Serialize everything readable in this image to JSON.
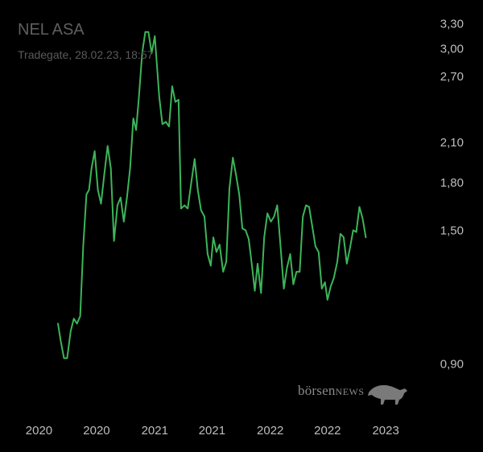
{
  "title": "NEL ASA",
  "subtitle": "Tradegate, 28.02.23, 18:57",
  "watermark": {
    "brand_lower": "börsen",
    "brand_upper": "NEWS",
    "icon": "bull-icon"
  },
  "colors": {
    "background": "#000000",
    "line": "#3cb55a",
    "axis_text": "#bdbdbd",
    "title_text": "#5f5f5f"
  },
  "chart_data": {
    "type": "line",
    "title": "NEL ASA",
    "y_scale": "log",
    "ylim": [
      0.84,
      3.4
    ],
    "y_ticks": [
      "3,30",
      "3,00",
      "2,70",
      "2,10",
      "1,80",
      "1,50",
      "0,90"
    ],
    "y_tick_values": [
      3.3,
      3.0,
      2.7,
      2.1,
      1.8,
      1.5,
      0.9
    ],
    "x_tick_labels": [
      "2020",
      "2020",
      "2021",
      "2021",
      "2022",
      "2022",
      "2023"
    ],
    "x_tick_dates": [
      "2020-01-01",
      "2020-07-01",
      "2021-01-01",
      "2021-07-01",
      "2022-01-01",
      "2022-07-01",
      "2023-01-01"
    ],
    "xlim": [
      "2019-11-15",
      "2023-04-15"
    ],
    "series": [
      {
        "points": [
          [
            "2020-03-01",
            1.05
          ],
          [
            "2020-03-10",
            0.98
          ],
          [
            "2020-03-20",
            0.92
          ],
          [
            "2020-03-30",
            0.92
          ],
          [
            "2020-04-10",
            1.02
          ],
          [
            "2020-04-20",
            1.07
          ],
          [
            "2020-04-30",
            1.05
          ],
          [
            "2020-05-10",
            1.08
          ],
          [
            "2020-05-20",
            1.42
          ],
          [
            "2020-05-30",
            1.72
          ],
          [
            "2020-06-07",
            1.75
          ],
          [
            "2020-06-15",
            1.9
          ],
          [
            "2020-06-25",
            2.03
          ],
          [
            "2020-07-05",
            1.75
          ],
          [
            "2020-07-15",
            1.66
          ],
          [
            "2020-07-25",
            1.85
          ],
          [
            "2020-08-05",
            2.07
          ],
          [
            "2020-08-15",
            1.9
          ],
          [
            "2020-08-25",
            1.44
          ],
          [
            "2020-09-05",
            1.65
          ],
          [
            "2020-09-15",
            1.7
          ],
          [
            "2020-09-25",
            1.55
          ],
          [
            "2020-10-05",
            1.7
          ],
          [
            "2020-10-15",
            1.9
          ],
          [
            "2020-10-25",
            2.3
          ],
          [
            "2020-11-03",
            2.2
          ],
          [
            "2020-11-12",
            2.5
          ],
          [
            "2020-11-22",
            2.95
          ],
          [
            "2020-12-02",
            3.2
          ],
          [
            "2020-12-12",
            3.2
          ],
          [
            "2020-12-22",
            2.95
          ],
          [
            "2021-01-01",
            3.15
          ],
          [
            "2021-01-15",
            2.5
          ],
          [
            "2021-01-25",
            2.25
          ],
          [
            "2021-02-05",
            2.27
          ],
          [
            "2021-02-15",
            2.23
          ],
          [
            "2021-02-25",
            2.6
          ],
          [
            "2021-03-07",
            2.45
          ],
          [
            "2021-03-17",
            2.47
          ],
          [
            "2021-03-25",
            1.63
          ],
          [
            "2021-04-05",
            1.65
          ],
          [
            "2021-04-15",
            1.63
          ],
          [
            "2021-04-25",
            1.78
          ],
          [
            "2021-05-07",
            1.97
          ],
          [
            "2021-05-17",
            1.75
          ],
          [
            "2021-05-27",
            1.62
          ],
          [
            "2021-06-07",
            1.58
          ],
          [
            "2021-06-17",
            1.37
          ],
          [
            "2021-06-27",
            1.31
          ],
          [
            "2021-07-05",
            1.46
          ],
          [
            "2021-07-15",
            1.38
          ],
          [
            "2021-07-25",
            1.42
          ],
          [
            "2021-08-05",
            1.28
          ],
          [
            "2021-08-15",
            1.33
          ],
          [
            "2021-08-25",
            1.76
          ],
          [
            "2021-09-05",
            1.98
          ],
          [
            "2021-09-15",
            1.85
          ],
          [
            "2021-09-25",
            1.72
          ],
          [
            "2021-10-05",
            1.51
          ],
          [
            "2021-10-15",
            1.5
          ],
          [
            "2021-10-25",
            1.45
          ],
          [
            "2021-11-05",
            1.3
          ],
          [
            "2021-11-13",
            1.19
          ],
          [
            "2021-11-22",
            1.32
          ],
          [
            "2021-12-03",
            1.18
          ],
          [
            "2021-12-13",
            1.46
          ],
          [
            "2021-12-23",
            1.6
          ],
          [
            "2022-01-03",
            1.55
          ],
          [
            "2022-01-13",
            1.58
          ],
          [
            "2022-01-23",
            1.65
          ],
          [
            "2022-02-03",
            1.4
          ],
          [
            "2022-02-13",
            1.2
          ],
          [
            "2022-02-23",
            1.3
          ],
          [
            "2022-03-05",
            1.37
          ],
          [
            "2022-03-15",
            1.22
          ],
          [
            "2022-03-25",
            1.28
          ],
          [
            "2022-04-04",
            1.28
          ],
          [
            "2022-04-14",
            1.58
          ],
          [
            "2022-04-24",
            1.65
          ],
          [
            "2022-05-04",
            1.64
          ],
          [
            "2022-05-14",
            1.52
          ],
          [
            "2022-05-24",
            1.41
          ],
          [
            "2022-06-03",
            1.38
          ],
          [
            "2022-06-13",
            1.2
          ],
          [
            "2022-06-23",
            1.23
          ],
          [
            "2022-07-01",
            1.15
          ],
          [
            "2022-07-11",
            1.21
          ],
          [
            "2022-07-21",
            1.25
          ],
          [
            "2022-08-01",
            1.33
          ],
          [
            "2022-08-11",
            1.48
          ],
          [
            "2022-08-21",
            1.46
          ],
          [
            "2022-08-31",
            1.32
          ],
          [
            "2022-09-10",
            1.4
          ],
          [
            "2022-09-20",
            1.5
          ],
          [
            "2022-09-30",
            1.49
          ],
          [
            "2022-10-10",
            1.64
          ],
          [
            "2022-10-20",
            1.57
          ],
          [
            "2022-10-30",
            1.46
          ]
        ]
      }
    ]
  }
}
